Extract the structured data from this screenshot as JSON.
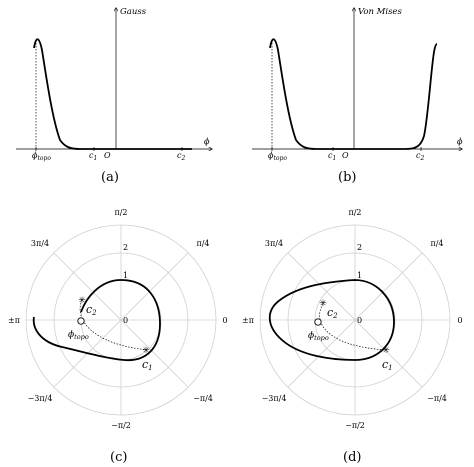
{
  "panels": {
    "a": {
      "label": "(a)",
      "curve_label": "Gauss",
      "x_axis_symbol": "ϕ",
      "ticks": {
        "phi_topo": "ϕ",
        "phi_topo_sub": "topo",
        "c1": "c",
        "c1_sub": "1",
        "origin": "O",
        "c2": "c",
        "c2_sub": "2"
      }
    },
    "b": {
      "label": "(b)",
      "curve_label": "Von Mises",
      "x_axis_symbol": "ϕ",
      "ticks": {
        "phi_topo": "ϕ",
        "phi_topo_sub": "topo",
        "c1": "c",
        "c1_sub": "1",
        "origin": "O",
        "c2": "c",
        "c2_sub": "2"
      }
    },
    "c": {
      "label": "(c)",
      "angle_labels": {
        "top": "π/2",
        "top_right": "π/4",
        "right": "0",
        "bottom_right": "−π/4",
        "bottom": "−π/2",
        "bottom_left": "−3π/4",
        "left": "±π",
        "top_left": "3π/4"
      },
      "radial_labels": {
        "r2": "2",
        "r1": "1",
        "r0": "0"
      },
      "markers": {
        "c1": "c",
        "c1_sub": "1",
        "c2": "c",
        "c2_sub": "2",
        "phi_topo": "ϕ",
        "phi_topo_sub": "topo"
      }
    },
    "d": {
      "label": "(d)",
      "angle_labels": {
        "top": "π/2",
        "top_right": "π/4",
        "right": "0",
        "bottom_right": "−π/4",
        "bottom": "−π/2",
        "bottom_left": "−3π/4",
        "left": "±π",
        "top_left": "3π/4"
      },
      "radial_labels": {
        "r2": "2",
        "r1": "1",
        "r0": "0"
      },
      "markers": {
        "c1": "c",
        "c1_sub": "1",
        "c2": "c",
        "c2_sub": "2",
        "phi_topo": "ϕ",
        "phi_topo_sub": "topo"
      }
    }
  },
  "colors": {
    "ink": "#000000",
    "grid": "#d0d0d0",
    "background": "#ffffff"
  }
}
